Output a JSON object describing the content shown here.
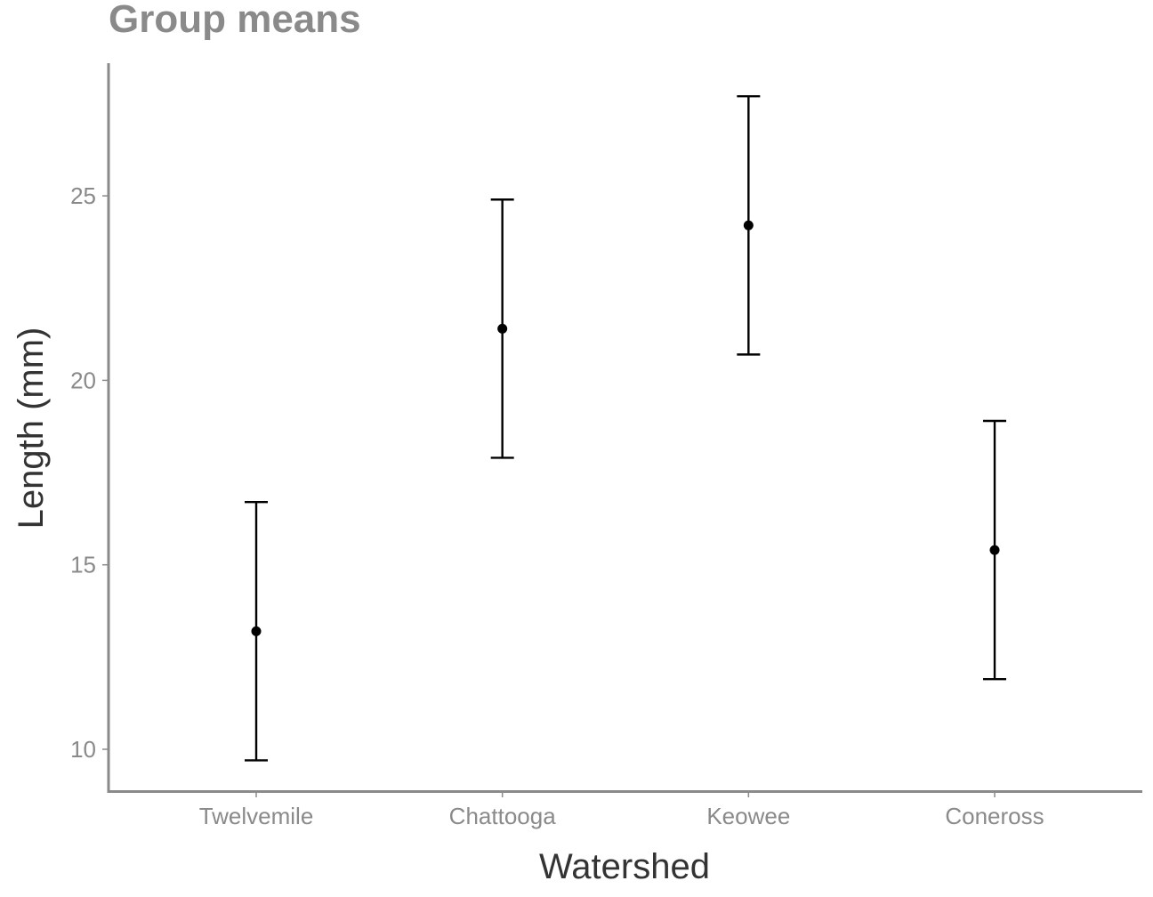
{
  "chart_data": {
    "type": "scatter",
    "title": "Group means",
    "xlabel": "Watershed",
    "ylabel": "Length (mm)",
    "categories": [
      "Twelvemile",
      "Chattooga",
      "Keowee",
      "Coneross"
    ],
    "series": [
      {
        "values": [
          13.2,
          21.4,
          24.2,
          15.4
        ],
        "lower": [
          9.7,
          17.9,
          20.7,
          11.9
        ],
        "upper": [
          16.7,
          24.9,
          27.7,
          18.9
        ]
      }
    ],
    "yticks": [
      10,
      15,
      20,
      25
    ],
    "ylim": [
      9.0,
      29.0
    ],
    "grid": false,
    "legend": "none",
    "colors": {
      "marks": "#000000",
      "axis": "#8a8a8a",
      "title": "#8a8a8a",
      "axis_title": "#333333"
    }
  }
}
